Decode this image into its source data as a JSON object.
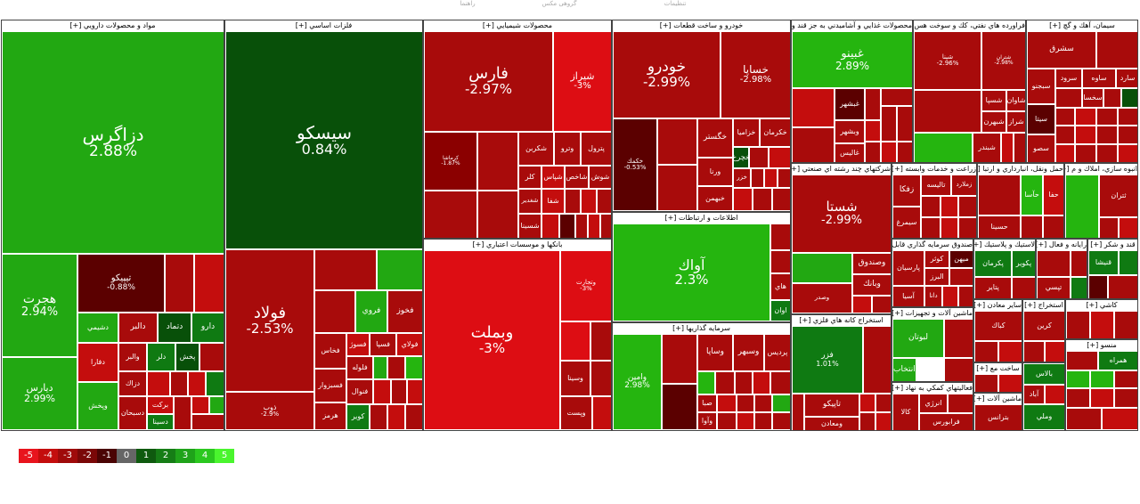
{
  "toolbar": {
    "items": [
      "راهنما",
      "گروهی مکس",
      "تنظیمات"
    ]
  },
  "sectors": {
    "pharma": "مواد و محصولات دارويي [+]",
    "metals": "فلزات اساسي [+]",
    "chemicals": "محصولات شيميايي [+]",
    "auto": "خودرو و ساخت قطعات [+]",
    "food": "محصولات غذايي و آشاميدني به جز قند و [+]",
    "refinery": "فراورده هاي نفتي، كك و سوخت هس [+]",
    "cement": "سيمان، آهك و گچ [+]",
    "banks": "بانكها و موسسات اعتباري [+]",
    "telecom": "اطلاعات و ارتباطات [+]",
    "investment": "سرمايه گذاريها [+]",
    "multi": "شركتهاي چند رشته اي صنعتي [+]",
    "mining": "استخراج كانه هاي فلزي [+]",
    "agri": "زراعت و خدمات وابسته [+]",
    "transport": "حمل ونقل، انبارداري و ارتبا [+]",
    "realestate": "انبوه سازي، املاك و م [+]",
    "fund": "صندوق سرمايه گذاري قابل معامله [+]",
    "rubber": "لاستيك و پلاستيك [+]",
    "computer": "رايانه و فعال [+]",
    "sugar": "قند و شكر [+]",
    "machinery": "ماشين آلات و تجهيزات [+]",
    "othermining": "ساير معادن [+]",
    "otherextract": "استخراج [+]",
    "aux": "فعاليتهاي كمكي به نهاد [+]",
    "construction": "ساخت مع [+]",
    "electric": "ماشين آلات [+]",
    "textile": "منسو [+]",
    "tiles": "كاشي [+]"
  },
  "tiles": {
    "dzagros": {
      "sym": "دزاگرس",
      "pct": "2.88%"
    },
    "hejrat": {
      "sym": "هجرت",
      "pct": "2.94%"
    },
    "daras": {
      "sym": "ديارس",
      "pct": "2.99%"
    },
    "tipico": {
      "sym": "تيپيكو",
      "pct": "-0.88%"
    },
    "dshimi": {
      "sym": "دشيمي",
      "pct": ""
    },
    "dalbor": {
      "sym": "دالبر",
      "pct": ""
    },
    "dtmad": {
      "sym": "دتماد",
      "pct": ""
    },
    "daru": {
      "sym": "دارو",
      "pct": ""
    },
    "dfara": {
      "sym": "دفارا",
      "pct": ""
    },
    "valber": {
      "sym": "والبر",
      "pct": ""
    },
    "dlar": {
      "sym": "دلر",
      "pct": ""
    },
    "pakhsh": {
      "sym": "پخش",
      "pct": ""
    },
    "dzarak": {
      "sym": "دزاك",
      "pct": ""
    },
    "vpakhsh": {
      "sym": "وپخش",
      "pct": ""
    },
    "dsbhan": {
      "sym": "دسبحان",
      "pct": ""
    },
    "barkat": {
      "sym": "بركت",
      "pct": ""
    },
    "dsina": {
      "sym": "دسينا",
      "pct": ""
    },
    "sisco": {
      "sym": "سيسكو",
      "pct": "0.84%"
    },
    "foolad": {
      "sym": "فولاد",
      "pct": "-2.53%"
    },
    "zob": {
      "sym": "ذوب",
      "pct": "-2.9%"
    },
    "fkhas": {
      "sym": "فخاس",
      "pct": ""
    },
    "fravi": {
      "sym": "فروي",
      "pct": ""
    },
    "fkhuz": {
      "sym": "فخوز",
      "pct": ""
    },
    "fsepa": {
      "sym": "فسپا",
      "pct": ""
    },
    "fsoj": {
      "sym": "فسوژ",
      "pct": ""
    },
    "folay": {
      "sym": "فولاي",
      "pct": ""
    },
    "foloole": {
      "sym": "فلوله",
      "pct": ""
    },
    "fsabzvar": {
      "sym": "فسبزوار",
      "pct": ""
    },
    "fsiroo": {
      "sym": "فسرو",
      "pct": ""
    },
    "fnval": {
      "sym": "فنوال",
      "pct": ""
    },
    "hormoz": {
      "sym": "هرمز",
      "pct": ""
    },
    "kavir": {
      "sym": "كوير",
      "pct": ""
    },
    "fars": {
      "sym": "فارس",
      "pct": "-2.97%"
    },
    "shiraz": {
      "sym": "شيراز",
      "pct": "-3%"
    },
    "kermasha": {
      "sym": "كرماشا",
      "pct": "-1.87%"
    },
    "shkarbon": {
      "sym": "شكربن",
      "pct": ""
    },
    "vtroo": {
      "sym": "وترو",
      "pct": ""
    },
    "petrol": {
      "sym": "پترول",
      "pct": ""
    },
    "shsina": {
      "sym": "شسينا",
      "pct": ""
    },
    "kalr": {
      "sym": "كلر",
      "pct": ""
    },
    "shfam": {
      "sym": "شغدير",
      "pct": ""
    },
    "shpas": {
      "sym": "شپاس",
      "pct": ""
    },
    "shesfa": {
      "sym": "شاخص",
      "pct": ""
    },
    "shoshe": {
      "sym": "شوش",
      "pct": ""
    },
    "shfa": {
      "sym": "شفا",
      "pct": ""
    },
    "khodro": {
      "sym": "خودرو",
      "pct": "-2.99%"
    },
    "khsapa": {
      "sym": "خساپا",
      "pct": "-2.98%"
    },
    "khkamak": {
      "sym": "خكمك",
      "pct": "-0.53%"
    },
    "khgostar": {
      "sym": "خگستر",
      "pct": ""
    },
    "khzamia": {
      "sym": "خزاميا",
      "pct": ""
    },
    "khkarman": {
      "sym": "خكرمان",
      "pct": ""
    },
    "vrna": {
      "sym": "ورنا",
      "pct": ""
    },
    "khbahman": {
      "sym": "خبهمن",
      "pct": ""
    },
    "khzar": {
      "sym": "خزر",
      "pct": ""
    },
    "khcharkh": {
      "sym": "خچرخ",
      "pct": ""
    },
    "ghbino": {
      "sym": "غبينو",
      "pct": "2.89%"
    },
    "ghbshahr": {
      "sym": "غبشهر",
      "pct": ""
    },
    "vbshahr": {
      "sym": "وبشهر",
      "pct": ""
    },
    "ghalis": {
      "sym": "غاليس",
      "pct": ""
    },
    "shbandar": {
      "sym": "شبندر",
      "pct": ""
    },
    "shpna": {
      "sym": "شپنا",
      "pct": "-2.96%"
    },
    "shtran": {
      "sym": "شتران",
      "pct": "-2.98%"
    },
    "shsapa": {
      "sym": "شسپا",
      "pct": ""
    },
    "shavan": {
      "sym": "شاوان",
      "pct": ""
    },
    "shraz": {
      "sym": "شراز",
      "pct": ""
    },
    "shbhrn": {
      "sym": "شبهرن",
      "pct": ""
    },
    "sfars": {
      "sym": "سفارس",
      "pct": ""
    },
    "sharg": {
      "sym": "سشرق",
      "pct": ""
    },
    "srud": {
      "sym": "سرود",
      "pct": ""
    },
    "svah": {
      "sym": "ساوه",
      "pct": ""
    },
    "sarad": {
      "sym": "سارد",
      "pct": ""
    },
    "sbjo": {
      "sym": "سبجنو",
      "pct": ""
    },
    "skhsa": {
      "sym": "سخسا",
      "pct": ""
    },
    "sita": {
      "sym": "سيتا",
      "pct": ""
    },
    "sso": {
      "sym": "سصو",
      "pct": ""
    },
    "vbmellat": {
      "sym": "وبملت",
      "pct": "-3%"
    },
    "vbmellat2": {
      "sym": "وبصادر",
      "pct": ""
    },
    "vtjarat": {
      "sym": "وتجارت",
      "pct": "-3%"
    },
    "vsina": {
      "sym": "وسينا",
      "pct": ""
    },
    "vpost": {
      "sym": "وپست",
      "pct": ""
    },
    "vpasar": {
      "sym": "وپاسار",
      "pct": ""
    },
    "aap": {
      "sym": "آواك",
      "pct": "2.3%"
    },
    "han": {
      "sym": "هاي",
      "pct": ""
    },
    "avan": {
      "sym": "اوان",
      "pct": ""
    },
    "vamin": {
      "sym": "وامين",
      "pct": "2.98%"
    },
    "vsapa": {
      "sym": "وساپا",
      "pct": ""
    },
    "vsbhr": {
      "sym": "وسبهر",
      "pct": ""
    },
    "prdis": {
      "sym": "پرديس",
      "pct": ""
    },
    "sba": {
      "sym": "صبا",
      "pct": ""
    },
    "vava": {
      "sym": "وآوا",
      "pct": ""
    },
    "shsta": {
      "sym": "شستا",
      "pct": "-2.99%"
    },
    "vsandq": {
      "sym": "وصندوق",
      "pct": ""
    },
    "vbank": {
      "sym": "وبانك",
      "pct": ""
    },
    "vsadr": {
      "sym": "وصدر",
      "pct": ""
    },
    "fzr": {
      "sym": "فزر",
      "pct": "1.01%"
    },
    "tapiko": {
      "sym": "تاپيكو",
      "pct": ""
    },
    "vmadan": {
      "sym": "ومعادن",
      "pct": ""
    },
    "zakeh": {
      "sym": "زفكا",
      "pct": ""
    },
    "talieh": {
      "sym": "تاليسه",
      "pct": ""
    },
    "zmlard": {
      "sym": "زملارد",
      "pct": ""
    },
    "simorgh": {
      "sym": "سيمرغ",
      "pct": ""
    },
    "hnafa": {
      "sym": "حفا",
      "pct": ""
    },
    "hsina": {
      "sym": "حسينا",
      "pct": ""
    },
    "hasa": {
      "sym": "حآسا",
      "pct": ""
    },
    "tiran": {
      "sym": "ثتران",
      "pct": ""
    },
    "kuzar": {
      "sym": "كوثر",
      "pct": ""
    },
    "mihan": {
      "sym": "ميهن",
      "pct": ""
    },
    "pariyan": {
      "sym": "پارسيان",
      "pct": ""
    },
    "albarz": {
      "sym": "البرز",
      "pct": ""
    },
    "asia": {
      "sym": "آسيا",
      "pct": ""
    },
    "dana": {
      "sym": "دانا",
      "pct": ""
    },
    "pkarman": {
      "sym": "پكرمان",
      "pct": ""
    },
    "pakvir": {
      "sym": "پكوير",
      "pct": ""
    },
    "ptayer": {
      "sym": "پتاير",
      "pct": ""
    },
    "tpsi": {
      "sym": "تپسي",
      "pct": ""
    },
    "ghnia": {
      "sym": "قنيشا",
      "pct": ""
    },
    "laboutan": {
      "sym": "لبوتان",
      "pct": ""
    },
    "entekhab": {
      "sym": "انتخاب",
      "pct": ""
    },
    "kbak": {
      "sym": "كباك",
      "pct": ""
    },
    "krin": {
      "sym": "كرين",
      "pct": ""
    },
    "anzri": {
      "sym": "انرژي",
      "pct": ""
    },
    "farabours": {
      "sym": "فرابورس",
      "pct": ""
    },
    "kala": {
      "sym": "كالا",
      "pct": ""
    },
    "hamrah": {
      "sym": "همراه",
      "pct": ""
    },
    "balas": {
      "sym": "بالاس",
      "pct": ""
    },
    "abad": {
      "sym": "آباد",
      "pct": ""
    },
    "btransi": {
      "sym": "بترانس",
      "pct": ""
    },
    "vmali": {
      "sym": "وملي",
      "pct": ""
    }
  },
  "legend": {
    "values": [
      "-5",
      "-4",
      "-3",
      "-2",
      "-1",
      "0",
      "1",
      "2",
      "3",
      "4",
      "5"
    ],
    "colors": [
      "#e8141d",
      "#c40d0d",
      "#9f0a0a",
      "#7a0707",
      "#4a0404",
      "#666666",
      "#0f5a0f",
      "#167d16",
      "#1fa31a",
      "#2bc81f",
      "#4af52e"
    ]
  }
}
